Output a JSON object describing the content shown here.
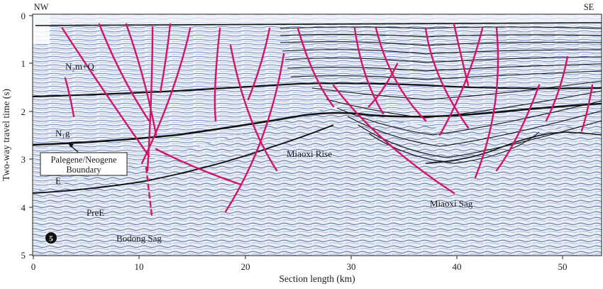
{
  "corners": {
    "left": "NW",
    "right": "SE"
  },
  "axes": {
    "ylabel": "Two-way travel time (s)",
    "xlabel": "Section length (km)",
    "yticks": [
      "0",
      "1",
      "2",
      "3",
      "4",
      "5"
    ],
    "xticks": [
      "0",
      "10",
      "20",
      "30",
      "40",
      "50"
    ]
  },
  "labels": {
    "nmq": "N₂m+Q",
    "ng": "N₁g",
    "e": "E",
    "pree": "PreE",
    "bodong": "Bodong Sag",
    "miaoxi_rise": "Miaoxi Rise",
    "miaoxi_sag": "Miaoxi Sag",
    "badge": "5"
  },
  "callout": {
    "line1": "Palegene/Neogene",
    "line2": "Boundary"
  },
  "colors": {
    "fault": "#d4136b",
    "horizon": "#111111",
    "seismic_light": "#e9eef6",
    "seismic_dark": "#2a4f9a"
  }
}
